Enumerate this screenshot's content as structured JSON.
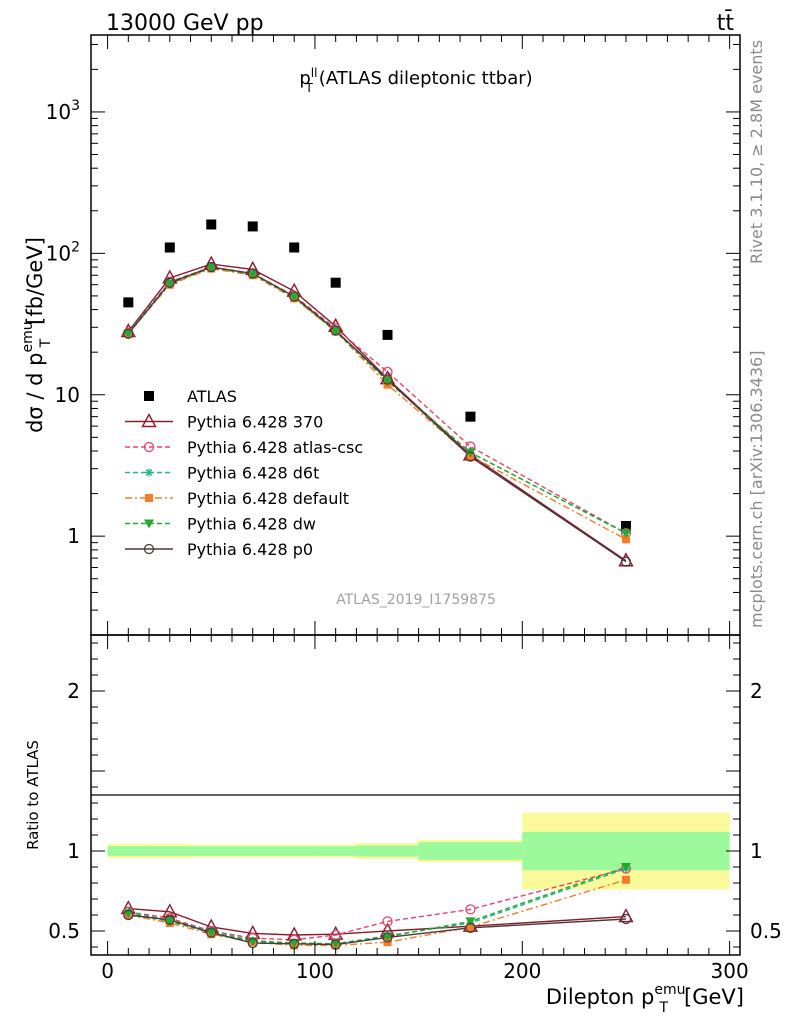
{
  "header": {
    "left": "13000 GeV pp",
    "right": "tt̄"
  },
  "side_labels": {
    "rivet": "Rivet 3.1.10, ≥ 2.8M events",
    "mcplots": "mcplots.cern.ch [arXiv:1306.3436]"
  },
  "chart_data": [
    {
      "type": "scatter",
      "panel": "main",
      "title": "p_T^ll (ATLAS dileptonic ttbar)",
      "ylabel": "dσ / d p_T^emu [fb/GeV]",
      "yscale": "log",
      "ylim": [
        0.2,
        3500
      ],
      "xlim": [
        -8,
        305
      ],
      "y_ticks": [
        "1",
        "10",
        "10^2",
        "10^3"
      ],
      "watermark": "ATLAS_2019_I1759875",
      "legend_position": "lower-left",
      "x": [
        10,
        30,
        50,
        70,
        90,
        110,
        135,
        175,
        250
      ],
      "series": [
        {
          "name": "ATLAS",
          "color": "#000000",
          "marker": "square",
          "values": [
            45,
            110,
            160,
            155,
            110,
            62,
            26.5,
            7.0,
            1.18
          ]
        },
        {
          "name": "Pythia 6.428 370",
          "color": "#8b1a2b",
          "marker": "open-triangle",
          "dash": "solid",
          "values": [
            28,
            67,
            84,
            77,
            54,
            30.5,
            13.0,
            3.75,
            0.67
          ]
        },
        {
          "name": "Pythia 6.428 atlas-csc",
          "color": "#e8426b",
          "marker": "open-circle",
          "dash": "dashed",
          "values": [
            27.5,
            63,
            80,
            72,
            50,
            29.5,
            14.5,
            4.3,
            1.05
          ]
        },
        {
          "name": "Pythia 6.428 d6t",
          "color": "#20b58a",
          "marker": "asterisk",
          "dash": "dashed",
          "values": [
            27.5,
            62,
            80,
            71,
            49.5,
            28.5,
            12.5,
            3.9,
            1.05
          ]
        },
        {
          "name": "Pythia 6.428 default",
          "color": "#f57c2a",
          "marker": "filled-square",
          "dash": "dashdot",
          "values": [
            27,
            60,
            78,
            70,
            48,
            28,
            11.8,
            3.7,
            0.95
          ]
        },
        {
          "name": "Pythia 6.428 dw",
          "color": "#1fab2f",
          "marker": "filled-triangle-down",
          "dash": "dashed",
          "values": [
            27,
            61,
            79,
            71,
            49,
            28,
            12.5,
            3.9,
            1.05
          ]
        },
        {
          "name": "Pythia 6.428 p0",
          "color": "#4a3a3a",
          "marker": "open-circle",
          "dash": "solid",
          "values": [
            27,
            62,
            80,
            72,
            49.5,
            28.5,
            12.8,
            3.65,
            0.66
          ]
        }
      ]
    },
    {
      "type": "line",
      "panel": "ratio",
      "ylabel": "Ratio to ATLAS",
      "xlabel": "Dilepton p_T^emu [GeV]",
      "ylim": [
        0.35,
        2.35
      ],
      "xlim": [
        -8,
        305
      ],
      "y_ticks": [
        "0.5",
        "1",
        "2"
      ],
      "x_ticks": [
        "0",
        "100",
        "200",
        "300"
      ],
      "x": [
        10,
        30,
        50,
        70,
        90,
        110,
        135,
        175,
        250
      ],
      "bands": {
        "edges": [
          0,
          20,
          40,
          60,
          80,
          100,
          120,
          150,
          200,
          300
        ],
        "stat": [
          0.03,
          0.03,
          0.03,
          0.03,
          0.03,
          0.03,
          0.035,
          0.055,
          0.12
        ],
        "total": [
          0.045,
          0.045,
          0.04,
          0.04,
          0.04,
          0.04,
          0.05,
          0.07,
          0.24
        ],
        "stat_color": "#9cfa9c",
        "total_color": "#fbfa9b"
      },
      "series": [
        {
          "name": "Pythia 6.428 370",
          "color": "#8b1a2b",
          "marker": "open-triangle",
          "dash": "solid",
          "values": [
            0.64,
            0.62,
            0.525,
            0.485,
            0.475,
            0.48,
            0.5,
            0.53,
            0.59
          ]
        },
        {
          "name": "Pythia 6.428 atlas-csc",
          "color": "#e8426b",
          "marker": "open-circle",
          "dash": "dashed",
          "values": [
            0.62,
            0.58,
            0.5,
            0.455,
            0.445,
            0.475,
            0.56,
            0.635,
            0.89
          ]
        },
        {
          "name": "Pythia 6.428 d6t",
          "color": "#20b58a",
          "marker": "asterisk",
          "dash": "dashed",
          "values": [
            0.62,
            0.565,
            0.5,
            0.44,
            0.425,
            0.42,
            0.47,
            0.55,
            0.89
          ]
        },
        {
          "name": "Pythia 6.428 default",
          "color": "#f57c2a",
          "marker": "filled-square",
          "dash": "dashdot",
          "values": [
            0.6,
            0.55,
            0.48,
            0.43,
            0.41,
            0.41,
            0.43,
            0.525,
            0.82
          ]
        },
        {
          "name": "Pythia 6.428 dw",
          "color": "#1fab2f",
          "marker": "filled-triangle-down",
          "dash": "dashed",
          "values": [
            0.61,
            0.56,
            0.49,
            0.435,
            0.425,
            0.42,
            0.465,
            0.56,
            0.9
          ]
        },
        {
          "name": "Pythia 6.428 p0",
          "color": "#4a3a3a",
          "marker": "open-circle",
          "dash": "solid",
          "values": [
            0.6,
            0.57,
            0.49,
            0.425,
            0.42,
            0.415,
            0.46,
            0.52,
            0.575
          ]
        }
      ]
    }
  ]
}
